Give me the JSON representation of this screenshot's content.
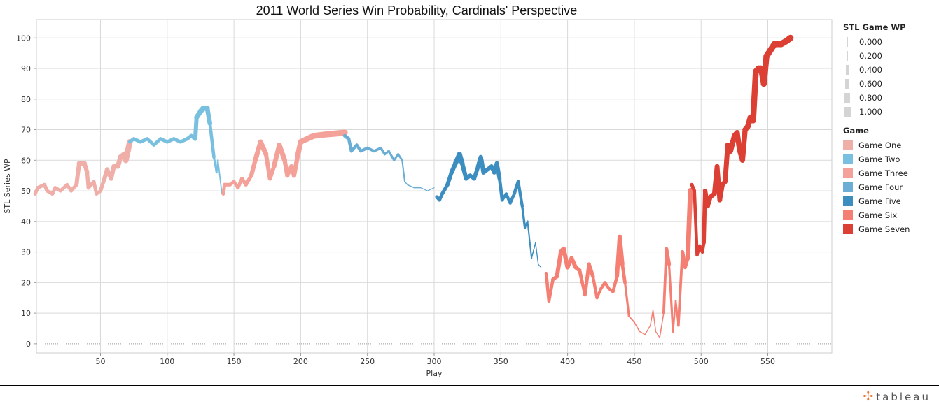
{
  "chart_data": {
    "type": "line",
    "title": "2011 World Series Win Probability, Cardinals' Perspective",
    "xlabel": "Play",
    "ylabel": "STL Series WP",
    "xlim": [
      2,
      598
    ],
    "ylim": [
      -3,
      106
    ],
    "xticks": [
      50,
      100,
      150,
      200,
      250,
      300,
      350,
      400,
      450,
      500,
      550
    ],
    "yticks": [
      0,
      10,
      20,
      30,
      40,
      50,
      60,
      70,
      80,
      90,
      100
    ],
    "grid": true,
    "legend_placement": "right",
    "size_legend": {
      "title": "STL Game WP",
      "values": [
        "0.000",
        "0.200",
        "0.400",
        "0.600",
        "0.800",
        "1.000"
      ]
    },
    "color_legend_title": "Game",
    "point_format": "[play, STL series WP, STL game WP]",
    "series": [
      {
        "name": "Game One",
        "color": "#efaea8",
        "points": [
          [
            1,
            49,
            0.5
          ],
          [
            3,
            51,
            0.5
          ],
          [
            8,
            52,
            0.55
          ],
          [
            10,
            50,
            0.5
          ],
          [
            14,
            49,
            0.5
          ],
          [
            16,
            51,
            0.5
          ],
          [
            20,
            50,
            0.5
          ],
          [
            25,
            52,
            0.5
          ],
          [
            28,
            50,
            0.5
          ],
          [
            32,
            52,
            0.55
          ],
          [
            34,
            59,
            0.7
          ],
          [
            38,
            59,
            0.7
          ],
          [
            40,
            56,
            0.6
          ],
          [
            41,
            51,
            0.5
          ],
          [
            45,
            53,
            0.55
          ],
          [
            47,
            49,
            0.45
          ],
          [
            50,
            50,
            0.5
          ],
          [
            53,
            54,
            0.6
          ],
          [
            55,
            57,
            0.7
          ],
          [
            58,
            54,
            0.6
          ],
          [
            60,
            58,
            0.7
          ],
          [
            63,
            58,
            0.7
          ],
          [
            65,
            61,
            0.8
          ],
          [
            68,
            62,
            0.85
          ],
          [
            69,
            60,
            0.85
          ],
          [
            72,
            66,
            0.95
          ]
        ]
      },
      {
        "name": "Game Two",
        "color": "#79c0e0",
        "points": [
          [
            72,
            66,
            0.5
          ],
          [
            75,
            67,
            0.5
          ],
          [
            80,
            66,
            0.5
          ],
          [
            85,
            67,
            0.5
          ],
          [
            90,
            65,
            0.45
          ],
          [
            95,
            67,
            0.5
          ],
          [
            100,
            66,
            0.5
          ],
          [
            105,
            67,
            0.5
          ],
          [
            110,
            66,
            0.5
          ],
          [
            115,
            67,
            0.5
          ],
          [
            118,
            68,
            0.55
          ],
          [
            121,
            67,
            0.55
          ],
          [
            122,
            74,
            0.7
          ],
          [
            125,
            76,
            0.8
          ],
          [
            127,
            77,
            0.85
          ],
          [
            130,
            77,
            0.8
          ],
          [
            132,
            72,
            0.6
          ],
          [
            135,
            61,
            0.3
          ],
          [
            137,
            56,
            0.2
          ],
          [
            138,
            60,
            0.15
          ],
          [
            141,
            49,
            0.05
          ]
        ]
      },
      {
        "name": "Game Three",
        "color": "#f4a199",
        "points": [
          [
            142,
            49,
            0.5
          ],
          [
            143,
            52,
            0.5
          ],
          [
            147,
            52,
            0.5
          ],
          [
            150,
            53,
            0.5
          ],
          [
            153,
            51,
            0.45
          ],
          [
            156,
            54,
            0.55
          ],
          [
            159,
            52,
            0.5
          ],
          [
            163,
            55,
            0.6
          ],
          [
            166,
            60,
            0.7
          ],
          [
            170,
            66,
            0.8
          ],
          [
            174,
            62,
            0.7
          ],
          [
            177,
            54,
            0.55
          ],
          [
            180,
            58,
            0.65
          ],
          [
            184,
            65,
            0.8
          ],
          [
            188,
            60,
            0.7
          ],
          [
            190,
            55,
            0.6
          ],
          [
            193,
            58,
            0.65
          ],
          [
            195,
            55,
            0.6
          ],
          [
            198,
            62,
            0.75
          ],
          [
            200,
            66,
            0.85
          ],
          [
            205,
            67,
            0.9
          ],
          [
            210,
            68,
            0.92
          ],
          [
            220,
            68.5,
            0.95
          ],
          [
            233,
            69,
            1
          ]
        ]
      },
      {
        "name": "Game Four",
        "color": "#6aaed6",
        "points": [
          [
            233,
            68,
            0.5
          ],
          [
            236,
            67,
            0.5
          ],
          [
            238,
            63,
            0.4
          ],
          [
            242,
            65,
            0.45
          ],
          [
            245,
            63,
            0.4
          ],
          [
            250,
            64,
            0.4
          ],
          [
            255,
            63,
            0.35
          ],
          [
            260,
            64,
            0.35
          ],
          [
            263,
            62,
            0.3
          ],
          [
            266,
            63,
            0.3
          ],
          [
            270,
            60,
            0.25
          ],
          [
            273,
            62,
            0.25
          ],
          [
            276,
            60,
            0.2
          ],
          [
            278,
            53,
            0.08
          ],
          [
            280,
            52,
            0.05
          ],
          [
            285,
            51,
            0.05
          ],
          [
            290,
            51,
            0.03
          ],
          [
            295,
            50,
            0.02
          ],
          [
            300,
            51,
            0.02
          ]
        ]
      },
      {
        "name": "Game Five",
        "color": "#3d8ec0",
        "points": [
          [
            302,
            48,
            0.5
          ],
          [
            304,
            47,
            0.45
          ],
          [
            306,
            49,
            0.5
          ],
          [
            310,
            52,
            0.55
          ],
          [
            313,
            56,
            0.65
          ],
          [
            316,
            59,
            0.7
          ],
          [
            319,
            62,
            0.8
          ],
          [
            321,
            59,
            0.7
          ],
          [
            324,
            54,
            0.6
          ],
          [
            327,
            55,
            0.6
          ],
          [
            330,
            54,
            0.55
          ],
          [
            333,
            58,
            0.65
          ],
          [
            335,
            61,
            0.7
          ],
          [
            337,
            56,
            0.6
          ],
          [
            340,
            57,
            0.6
          ],
          [
            343,
            58,
            0.6
          ],
          [
            345,
            56,
            0.6
          ],
          [
            347,
            59,
            0.65
          ],
          [
            349,
            54,
            0.55
          ],
          [
            351,
            47,
            0.4
          ],
          [
            354,
            49,
            0.45
          ],
          [
            357,
            46,
            0.4
          ],
          [
            360,
            49,
            0.45
          ],
          [
            363,
            53,
            0.5
          ],
          [
            366,
            45,
            0.35
          ],
          [
            368,
            38,
            0.25
          ],
          [
            370,
            40,
            0.2
          ],
          [
            373,
            28,
            0.08
          ],
          [
            376,
            33,
            0.05
          ],
          [
            378,
            26,
            0.03
          ],
          [
            380,
            25,
            0.02
          ]
        ]
      },
      {
        "name": "Game Six",
        "color": "#f47f72",
        "points": [
          [
            384,
            23,
            0.5
          ],
          [
            386,
            14,
            0.4
          ],
          [
            389,
            21,
            0.5
          ],
          [
            392,
            22,
            0.55
          ],
          [
            395,
            30,
            0.7
          ],
          [
            397,
            31,
            0.7
          ],
          [
            400,
            25,
            0.6
          ],
          [
            403,
            28,
            0.6
          ],
          [
            406,
            25,
            0.6
          ],
          [
            409,
            24,
            0.55
          ],
          [
            411,
            20,
            0.45
          ],
          [
            413,
            16,
            0.4
          ],
          [
            416,
            26,
            0.6
          ],
          [
            419,
            22,
            0.5
          ],
          [
            422,
            15,
            0.35
          ],
          [
            425,
            18,
            0.4
          ],
          [
            428,
            20,
            0.45
          ],
          [
            431,
            18,
            0.4
          ],
          [
            434,
            17,
            0.4
          ],
          [
            437,
            22,
            0.5
          ],
          [
            439,
            35,
            0.7
          ],
          [
            441,
            26,
            0.55
          ],
          [
            443,
            20,
            0.4
          ],
          [
            446,
            9,
            0.15
          ],
          [
            450,
            7,
            0.1
          ],
          [
            454,
            4,
            0.05
          ],
          [
            458,
            3,
            0.04
          ],
          [
            462,
            6,
            0.05
          ],
          [
            464,
            11,
            0.08
          ],
          [
            466,
            4,
            0.04
          ],
          [
            469,
            2,
            0.03
          ],
          [
            472,
            10,
            0.1
          ],
          [
            474,
            31,
            0.6
          ],
          [
            476,
            26,
            0.5
          ],
          [
            479,
            4,
            0.05
          ],
          [
            481,
            14,
            0.3
          ],
          [
            483,
            6,
            0.1
          ],
          [
            486,
            30,
            0.6
          ],
          [
            488,
            25,
            0.5
          ],
          [
            490,
            28,
            0.55
          ],
          [
            492,
            50,
            0.9
          ],
          [
            493,
            50,
            0.9
          ]
        ]
      },
      {
        "name": "Game Seven",
        "color": "#dc3f33",
        "points": [
          [
            493,
            52,
            0.5
          ],
          [
            495,
            50,
            0.5
          ],
          [
            497,
            29,
            0.4
          ],
          [
            499,
            32,
            0.45
          ],
          [
            501,
            30,
            0.45
          ],
          [
            502,
            33,
            0.5
          ],
          [
            503,
            50,
            0.7
          ],
          [
            505,
            45,
            0.65
          ],
          [
            507,
            48,
            0.65
          ],
          [
            510,
            49,
            0.7
          ],
          [
            512,
            58,
            0.75
          ],
          [
            514,
            47,
            0.7
          ],
          [
            516,
            52,
            0.7
          ],
          [
            518,
            53,
            0.7
          ],
          [
            520,
            65,
            0.8
          ],
          [
            522,
            63,
            0.8
          ],
          [
            525,
            68,
            0.85
          ],
          [
            527,
            69,
            0.85
          ],
          [
            529,
            63,
            0.8
          ],
          [
            531,
            60,
            0.75
          ],
          [
            533,
            70,
            0.85
          ],
          [
            535,
            71,
            0.85
          ],
          [
            537,
            74,
            0.9
          ],
          [
            539,
            73,
            0.9
          ],
          [
            541,
            89,
            0.95
          ],
          [
            543,
            90,
            0.95
          ],
          [
            545,
            90,
            0.95
          ],
          [
            547,
            85,
            0.9
          ],
          [
            549,
            94,
            0.97
          ],
          [
            552,
            96,
            0.98
          ],
          [
            555,
            98,
            0.99
          ],
          [
            560,
            98,
            1
          ],
          [
            564,
            99,
            1
          ],
          [
            567,
            100,
            1
          ]
        ]
      }
    ]
  },
  "branding": {
    "logo_text": "tableau"
  }
}
